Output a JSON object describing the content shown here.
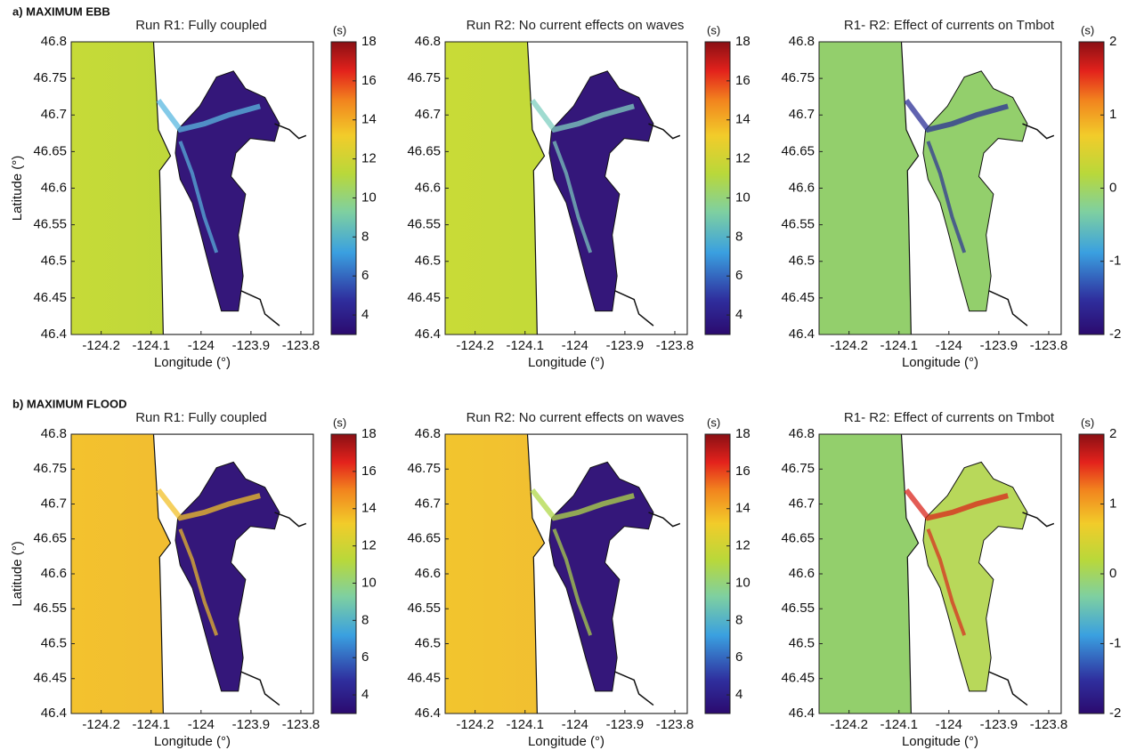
{
  "figure": {
    "rows": [
      {
        "label": "a) MAXIMUM EBB",
        "panels": [
          {
            "title": "Run R1: Fully coupled",
            "unit": "(s)",
            "xlabel": "Longitude (°)",
            "ylabel": "Latitude (°)",
            "xlim": [
              -124.26,
              -123.775
            ],
            "ylim": [
              46.4,
              46.8
            ],
            "xticks": [
              -124.2,
              -124.1,
              -124,
              -123.9,
              -123.8
            ],
            "yticks": [
              46.4,
              46.45,
              46.5,
              46.55,
              46.6,
              46.65,
              46.7,
              46.75,
              46.8
            ],
            "clim": [
              3,
              18
            ],
            "cticks": [
              4,
              6,
              8,
              10,
              12,
              14,
              16,
              18
            ]
          },
          {
            "title": "Run R2: No current effects on waves",
            "unit": "(s)",
            "xlabel": "Longitude (°)",
            "xlim": [
              -124.26,
              -123.775
            ],
            "ylim": [
              46.4,
              46.8
            ],
            "xticks": [
              -124.2,
              -124.1,
              -124,
              -123.9,
              -123.8
            ],
            "yticks": [
              46.4,
              46.45,
              46.5,
              46.55,
              46.6,
              46.65,
              46.7,
              46.75,
              46.8
            ],
            "clim": [
              3,
              18
            ],
            "cticks": [
              4,
              6,
              8,
              10,
              12,
              14,
              16,
              18
            ]
          },
          {
            "title": "R1- R2: Effect of currents on Tmbot",
            "unit": "(s)",
            "xlabel": "Longitude (°)",
            "xlim": [
              -124.26,
              -123.775
            ],
            "ylim": [
              46.4,
              46.8
            ],
            "xticks": [
              -124.2,
              -124.1,
              -124,
              -123.9,
              -123.8
            ],
            "yticks": [
              46.4,
              46.45,
              46.5,
              46.55,
              46.6,
              46.65,
              46.7,
              46.75,
              46.8
            ],
            "clim": [
              -2,
              2
            ],
            "cticks": [
              -2,
              -1,
              0,
              1,
              2
            ]
          }
        ]
      },
      {
        "label": "b) MAXIMUM FLOOD",
        "panels": [
          {
            "title": "Run R1: Fully coupled",
            "unit": "(s)",
            "xlabel": "Longitude (°)",
            "ylabel": "Latitude (°)",
            "xlim": [
              -124.26,
              -123.775
            ],
            "ylim": [
              46.4,
              46.8
            ],
            "xticks": [
              -124.2,
              -124.1,
              -124,
              -123.9,
              -123.8
            ],
            "yticks": [
              46.4,
              46.45,
              46.5,
              46.55,
              46.6,
              46.65,
              46.7,
              46.75,
              46.8
            ],
            "clim": [
              3,
              18
            ],
            "cticks": [
              4,
              6,
              8,
              10,
              12,
              14,
              16,
              18
            ]
          },
          {
            "title": "Run R2: No current effects on waves",
            "unit": "(s)",
            "xlabel": "Longitude (°)",
            "xlim": [
              -124.26,
              -123.775
            ],
            "ylim": [
              46.4,
              46.8
            ],
            "xticks": [
              -124.2,
              -124.1,
              -124,
              -123.9,
              -123.8
            ],
            "yticks": [
              46.4,
              46.45,
              46.5,
              46.55,
              46.6,
              46.65,
              46.7,
              46.75,
              46.8
            ],
            "clim": [
              3,
              18
            ],
            "cticks": [
              4,
              6,
              8,
              10,
              12,
              14,
              16,
              18
            ]
          },
          {
            "title": "R1- R2: Effect of currents on Tmbot",
            "unit": "(s)",
            "xlabel": "Longitude (°)",
            "xlim": [
              -124.26,
              -123.775
            ],
            "ylim": [
              46.4,
              46.8
            ],
            "xticks": [
              -124.2,
              -124.1,
              -124,
              -123.9,
              -123.8
            ],
            "yticks": [
              46.4,
              46.45,
              46.5,
              46.55,
              46.6,
              46.65,
              46.7,
              46.75,
              46.8
            ],
            "clim": [
              -2,
              2
            ],
            "cticks": [
              -2,
              -1,
              0,
              1,
              2
            ]
          }
        ]
      }
    ]
  }
}
